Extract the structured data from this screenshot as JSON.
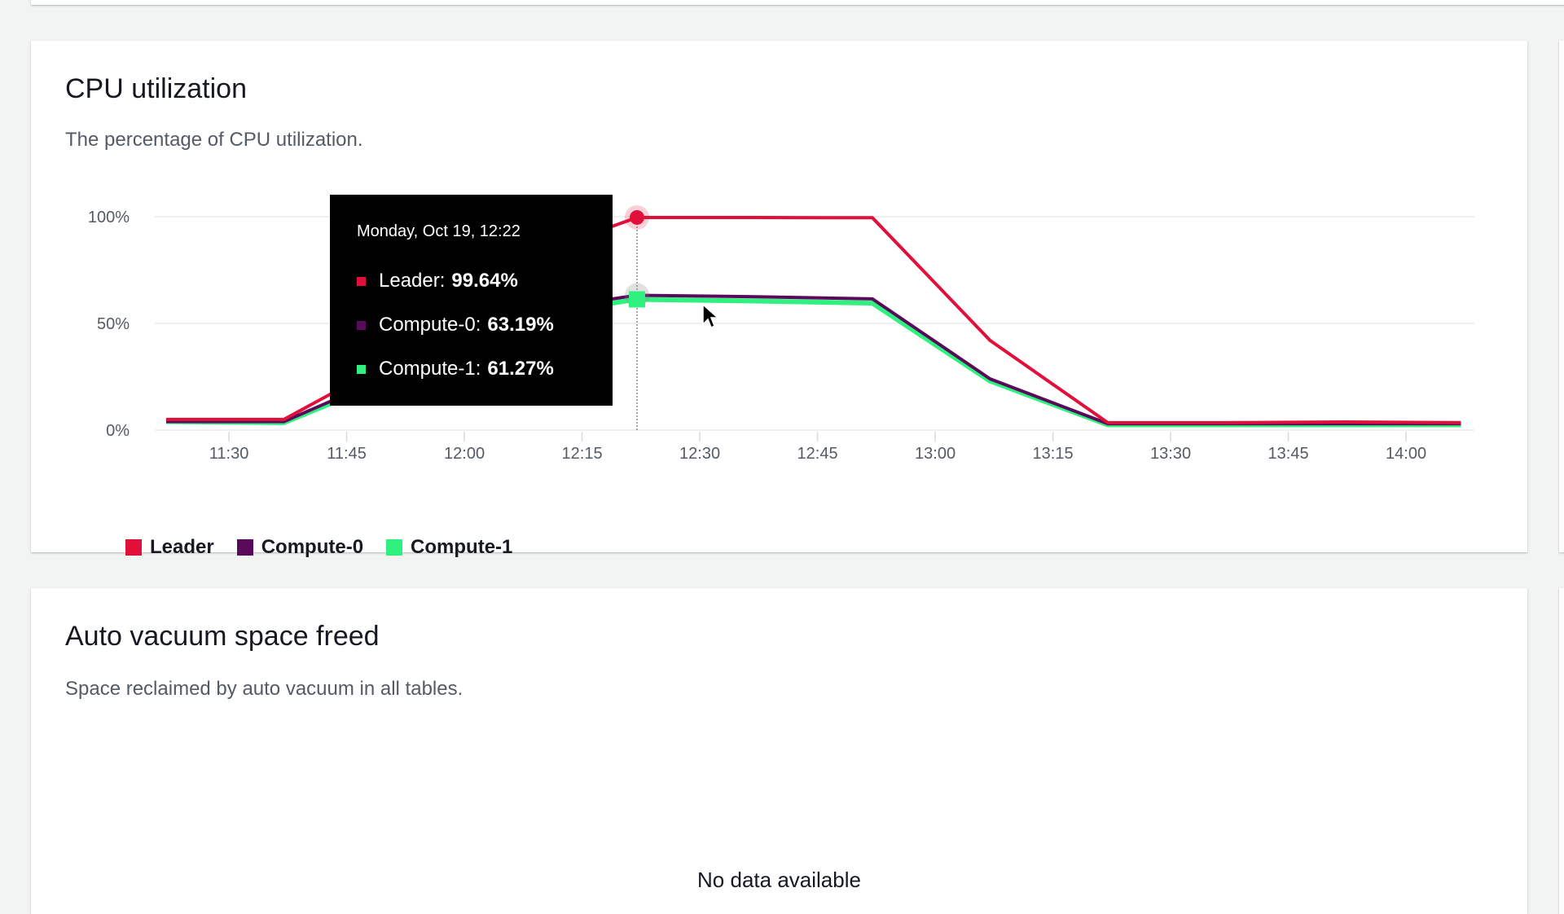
{
  "cpu_panel": {
    "title": "CPU utilization",
    "subtitle": "The percentage of CPU utilization."
  },
  "tooltip": {
    "date": "Monday, Oct 19, 12:22",
    "rows": [
      {
        "label": "Leader:",
        "value": "99.64%",
        "color": "#e0103a"
      },
      {
        "label": "Compute-0:",
        "value": "63.19%",
        "color": "#5a0a5a"
      },
      {
        "label": "Compute-1:",
        "value": "61.27%",
        "color": "#30f080"
      }
    ]
  },
  "vacuum_panel": {
    "title": "Auto vacuum space freed",
    "subtitle": "Space reclaimed by auto vacuum in all tables.",
    "empty_message": "No data available"
  },
  "chart_data": {
    "type": "line",
    "title": "CPU utilization",
    "xlabel": "",
    "ylabel": "",
    "x": [
      "11:22",
      "11:37",
      "11:52",
      "12:07",
      "12:22",
      "12:37",
      "12:52",
      "13:07",
      "13:22",
      "13:37",
      "13:52",
      "14:07"
    ],
    "x_minutes": [
      682,
      697,
      712,
      727,
      742,
      757,
      772,
      787,
      802,
      817,
      832,
      847
    ],
    "xlim_minutes": [
      682,
      847
    ],
    "xticks": [
      {
        "label": "11:30",
        "minutes": 690
      },
      {
        "label": "11:45",
        "minutes": 705
      },
      {
        "label": "12:00",
        "minutes": 720
      },
      {
        "label": "12:15",
        "minutes": 735
      },
      {
        "label": "12:30",
        "minutes": 750
      },
      {
        "label": "12:45",
        "minutes": 765
      },
      {
        "label": "13:00",
        "minutes": 780
      },
      {
        "label": "13:15",
        "minutes": 795
      },
      {
        "label": "13:30",
        "minutes": 810
      },
      {
        "label": "13:45",
        "minutes": 825
      },
      {
        "label": "14:00",
        "minutes": 840
      }
    ],
    "yticks": [
      {
        "label": "0%",
        "value": 0
      },
      {
        "label": "50%",
        "value": 50
      },
      {
        "label": "100%",
        "value": 100
      }
    ],
    "ylim": [
      0,
      100
    ],
    "grid": true,
    "legend_position": "bottom-left",
    "hover_index": 4,
    "series": [
      {
        "name": "Leader",
        "color": "#e0103a",
        "values": [
          5,
          5,
          35,
          80,
          99.64,
          99.6,
          99.5,
          42,
          3.5,
          3.5,
          3.8,
          3.5
        ]
      },
      {
        "name": "Compute-0",
        "color": "#5a0a5a",
        "values": [
          4,
          4,
          28,
          55,
          63.19,
          62.5,
          61.5,
          24,
          3,
          3,
          3,
          3
        ]
      },
      {
        "name": "Compute-1",
        "color": "#30f080",
        "values": [
          4,
          3.5,
          26,
          53,
          61.27,
          60.5,
          59.5,
          23,
          2.5,
          2.5,
          2.5,
          2.5
        ]
      }
    ]
  }
}
